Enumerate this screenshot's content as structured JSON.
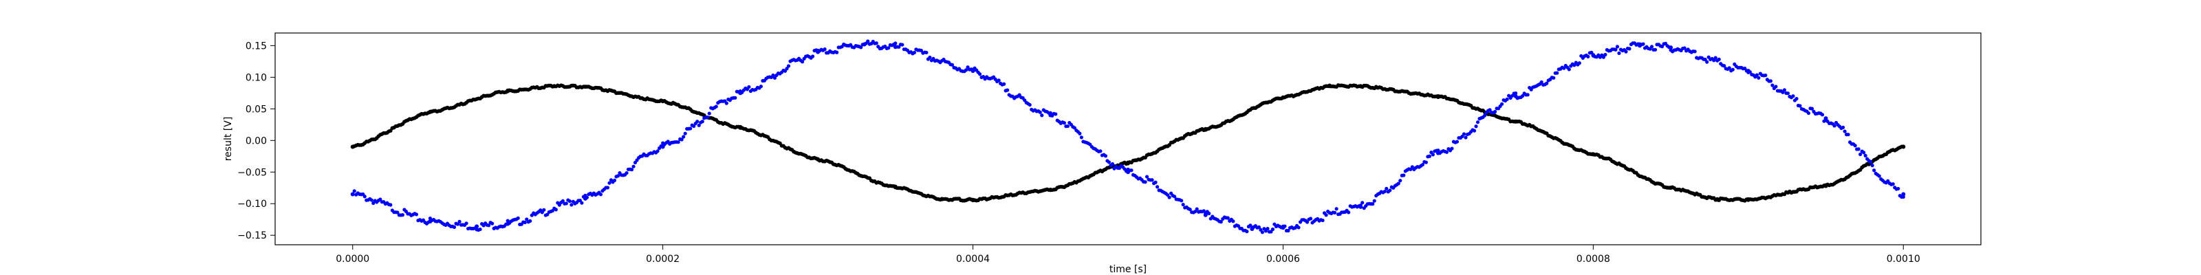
{
  "chart_data": {
    "type": "scatter",
    "xlabel": "time [s]",
    "ylabel": "result [V]",
    "xlim": [
      -5e-05,
      0.00105
    ],
    "ylim": [
      -0.165,
      0.17
    ],
    "x_ticks": [
      0.0,
      0.0002,
      0.0004,
      0.0006,
      0.0008,
      0.001
    ],
    "x_tick_labels": [
      "0.0000",
      "0.0002",
      "0.0004",
      "0.0006",
      "0.0008",
      "0.0010"
    ],
    "y_ticks": [
      -0.15,
      -0.1,
      -0.05,
      0.0,
      0.05,
      0.1,
      0.15
    ],
    "y_tick_labels": [
      "−0.15",
      "−0.10",
      "−0.05",
      "0.00",
      "0.05",
      "0.10",
      "0.15"
    ],
    "grid": false,
    "series": [
      {
        "color": "#000000",
        "marker": "dot",
        "x": [
          0.0,
          5e-05,
          0.0001,
          0.00013,
          0.00015,
          0.0002,
          0.00025,
          0.0003,
          0.00035,
          0.00038,
          0.0004,
          0.00045,
          0.0005,
          0.00055,
          0.0006,
          0.00063,
          0.00065,
          0.0007,
          0.00075,
          0.0008,
          0.00085,
          0.00088,
          0.0009,
          0.00095,
          0.001
        ],
        "y": [
          -0.01,
          0.045,
          0.078,
          0.086,
          0.085,
          0.062,
          0.02,
          -0.03,
          -0.074,
          -0.093,
          -0.094,
          -0.078,
          -0.035,
          0.018,
          0.068,
          0.086,
          0.086,
          0.07,
          0.03,
          -0.022,
          -0.075,
          -0.093,
          -0.094,
          -0.072,
          -0.01
        ]
      },
      {
        "color": "#0000ff",
        "marker": "dot",
        "x": [
          0.0,
          5e-05,
          8e-05,
          0.0001,
          0.00015,
          0.0002,
          0.00025,
          0.0003,
          0.00033,
          0.00035,
          0.0004,
          0.00045,
          0.0005,
          0.00055,
          0.00058,
          0.0006,
          0.00065,
          0.0007,
          0.00075,
          0.0008,
          0.00083,
          0.00085,
          0.0009,
          0.00095,
          0.001
        ],
        "y": [
          -0.085,
          -0.128,
          -0.136,
          -0.132,
          -0.092,
          -0.01,
          0.075,
          0.14,
          0.152,
          0.148,
          0.11,
          0.04,
          -0.05,
          -0.118,
          -0.14,
          -0.138,
          -0.105,
          -0.02,
          0.07,
          0.135,
          0.15,
          0.147,
          0.11,
          0.035,
          -0.085
        ]
      }
    ]
  }
}
